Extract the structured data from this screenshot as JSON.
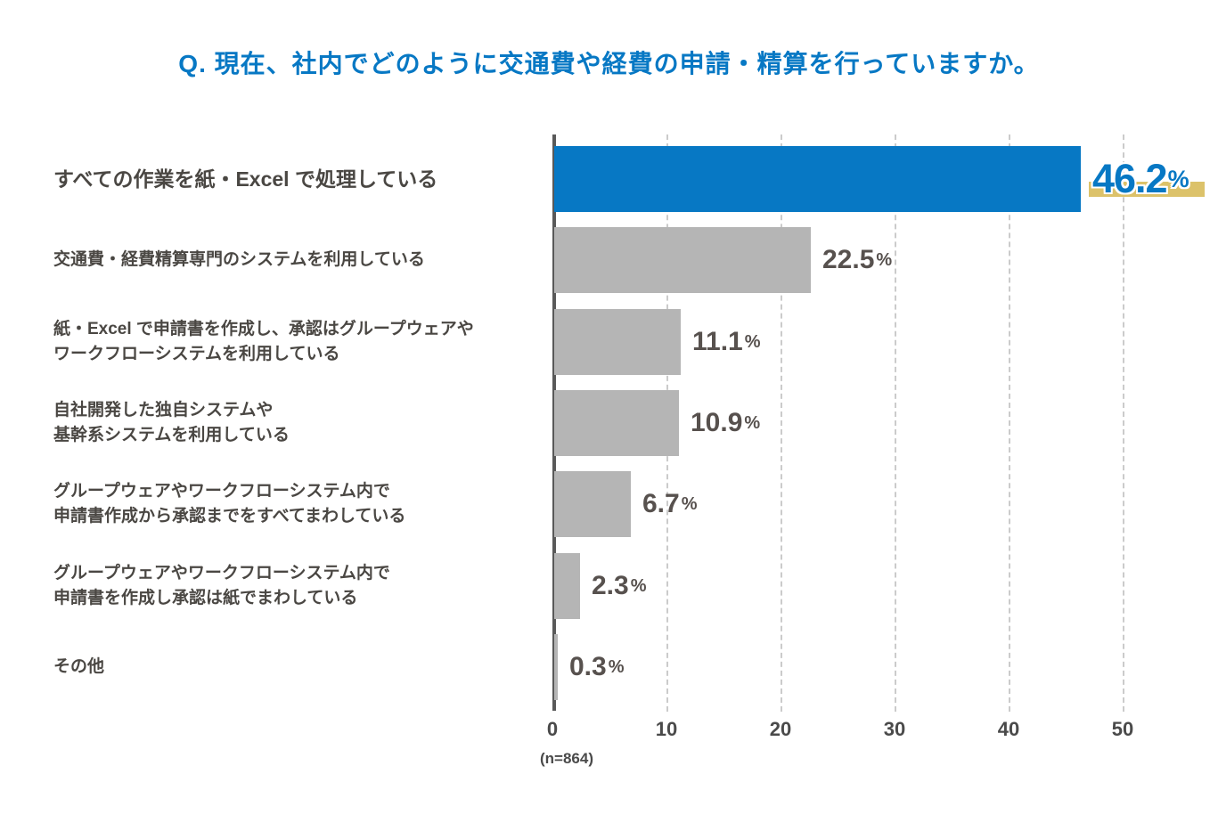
{
  "title": {
    "text": "Q. 現在、社内でどのように交通費や経費の申請・精算を行っていますか。"
  },
  "colors": {
    "accent_blue": "#0778c4",
    "bar_gray": "#b5b5b5",
    "highlight_gold": "#dcc26a",
    "label_text": "#4a4743",
    "value_text": "#57514e",
    "axis_gray": "#595959",
    "gridline_gray": "#cbcbcb"
  },
  "chart_data": {
    "type": "bar",
    "orientation": "horizontal",
    "title": "Q. 現在、社内でどのように交通費や経費の申請・精算を行っていますか。",
    "xlabel": "",
    "ylabel": "",
    "unit": "%",
    "xlim": [
      0,
      50
    ],
    "x_ticks": [
      0,
      10,
      20,
      30,
      40,
      50
    ],
    "grid": "dashed-vertical",
    "legend": "none",
    "sample_note": "(n=864)",
    "categories": [
      "すべての作業を紙・Excel で処理している",
      "交通費・経費精算専門のシステムを利用している",
      "紙・Excel で申請書を作成し、承認はグループウェアや\nワークフローシステムを利用している",
      "自社開発した独自システムや\n基幹系システムを利用している",
      "グループウェアやワークフローシステム内で\n申請書作成から承認までをすべてまわしている",
      "グループウェアやワークフローシステム内で\n申請書を作成し承認は紙でまわしている",
      "その他"
    ],
    "values": [
      46.2,
      22.5,
      11.1,
      10.9,
      6.7,
      2.3,
      0.3
    ],
    "rows": [
      {
        "label_lines": [
          "すべての作業を紙・Excel で処理している"
        ],
        "value": 46.2,
        "value_display": "46.2",
        "emphasized": true
      },
      {
        "label_lines": [
          "交通費・経費精算専門のシステムを利用している"
        ],
        "value": 22.5,
        "value_display": "22.5",
        "emphasized": false
      },
      {
        "label_lines": [
          "紙・Excel で申請書を作成し、承認はグループウェアや",
          "ワークフローシステムを利用している"
        ],
        "value": 11.1,
        "value_display": "11.1",
        "emphasized": false
      },
      {
        "label_lines": [
          "自社開発した独自システムや",
          "基幹系システムを利用している"
        ],
        "value": 10.9,
        "value_display": "10.9",
        "emphasized": false
      },
      {
        "label_lines": [
          "グループウェアやワークフローシステム内で",
          "申請書作成から承認までをすべてまわしている"
        ],
        "value": 6.7,
        "value_display": "6.7",
        "emphasized": false
      },
      {
        "label_lines": [
          "グループウェアやワークフローシステム内で",
          "申請書を作成し承認は紙でまわしている"
        ],
        "value": 2.3,
        "value_display": "2.3",
        "emphasized": false
      },
      {
        "label_lines": [
          "その他"
        ],
        "value": 0.3,
        "value_display": "0.3",
        "emphasized": false
      }
    ]
  }
}
